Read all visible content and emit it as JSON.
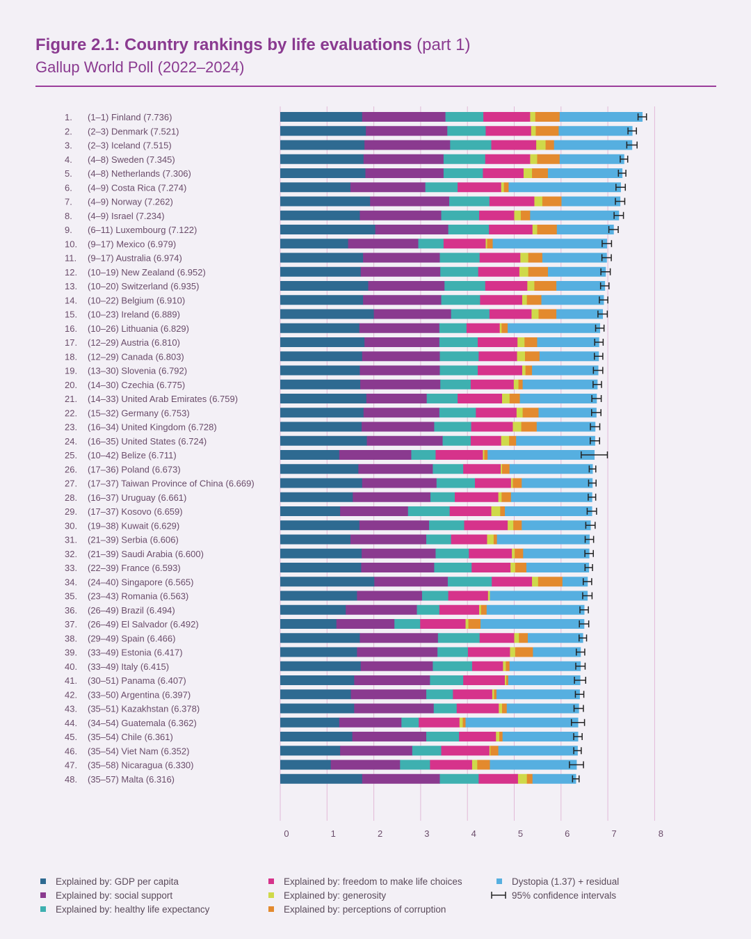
{
  "header": {
    "title": "Figure 2.1: Country rankings by life evaluations",
    "title_part": "(part 1)",
    "subtitle": "Gallup World Poll (2022–2024)"
  },
  "chart_data": {
    "type": "bar",
    "orientation": "horizontal",
    "stacked": true,
    "xlim": [
      0,
      8
    ],
    "x_ticks": [
      "0",
      "1",
      "2",
      "3",
      "4",
      "5",
      "6",
      "7",
      "8"
    ],
    "grid": true,
    "legend_position": "bottom",
    "components": [
      {
        "key": "gdp",
        "name": "Explained by: GDP per capita",
        "color": "#2e6a91"
      },
      {
        "key": "social",
        "name": "Explained by: social support",
        "color": "#8a3a8f"
      },
      {
        "key": "health",
        "name": "Explained by: healthy life expectancy",
        "color": "#3eb0b0"
      },
      {
        "key": "freedom",
        "name": "Explained by: freedom to make life choices",
        "color": "#d6338b"
      },
      {
        "key": "generosity",
        "name": "Explained by: generosity",
        "color": "#cfd94a"
      },
      {
        "key": "corruption",
        "name": "Explained by: perceptions of corruption",
        "color": "#e38a2e"
      },
      {
        "key": "dystopia",
        "name": "Dystopia (1.37) + residual",
        "color": "#56afe0"
      }
    ],
    "ci_legend": "95% confidence intervals",
    "rows": [
      {
        "label": "1.",
        "name": "(1–1) Finland (7.736)",
        "score": 7.736,
        "ci": 0.09,
        "parts": [
          1.75,
          1.78,
          0.81,
          1.0,
          0.11,
          0.52
        ]
      },
      {
        "label": "2.",
        "name": "(2–3) Denmark (7.521)",
        "score": 7.521,
        "ci": 0.09,
        "parts": [
          1.83,
          1.74,
          0.82,
          0.97,
          0.1,
          0.49
        ]
      },
      {
        "label": "3.",
        "name": "(2–3) Iceland (7.515)",
        "score": 7.515,
        "ci": 0.11,
        "parts": [
          1.8,
          1.83,
          0.88,
          0.96,
          0.2,
          0.18
        ]
      },
      {
        "label": "4.",
        "name": "(4–8) Sweden (7.345)",
        "score": 7.345,
        "ci": 0.08,
        "parts": [
          1.78,
          1.71,
          0.89,
          0.96,
          0.15,
          0.48
        ]
      },
      {
        "label": "5.",
        "name": "(4–8) Netherlands (7.306)",
        "score": 7.306,
        "ci": 0.08,
        "parts": [
          1.82,
          1.67,
          0.84,
          0.87,
          0.18,
          0.34
        ]
      },
      {
        "label": "6.",
        "name": "(4–9) Costa Rica (7.274)",
        "score": 7.274,
        "ci": 0.1,
        "parts": [
          1.5,
          1.6,
          0.69,
          0.93,
          0.06,
          0.1
        ]
      },
      {
        "label": "7.",
        "name": "(4–9) Norway (7.262)",
        "score": 7.262,
        "ci": 0.1,
        "parts": [
          1.92,
          1.69,
          0.86,
          0.96,
          0.17,
          0.41
        ]
      },
      {
        "label": "8.",
        "name": "(4–9) Israel (7.234)",
        "score": 7.234,
        "ci": 0.1,
        "parts": [
          1.7,
          1.74,
          0.81,
          0.75,
          0.14,
          0.2
        ]
      },
      {
        "label": "9.",
        "name": "(6–11) Luxembourg (7.122)",
        "score": 7.122,
        "ci": 0.1,
        "parts": [
          2.03,
          1.56,
          0.87,
          0.93,
          0.1,
          0.42
        ]
      },
      {
        "label": "10.",
        "name": "(9–17) Mexico (6.979)",
        "score": 6.979,
        "ci": 0.1,
        "parts": [
          1.45,
          1.5,
          0.54,
          0.9,
          0.03,
          0.12
        ]
      },
      {
        "label": "11.",
        "name": "(9–17) Australia (6.974)",
        "score": 6.974,
        "ci": 0.1,
        "parts": [
          1.77,
          1.64,
          0.85,
          0.87,
          0.17,
          0.3
        ]
      },
      {
        "label": "12.",
        "name": "(10–19) New Zealand (6.952)",
        "score": 6.952,
        "ci": 0.1,
        "parts": [
          1.72,
          1.7,
          0.81,
          0.88,
          0.19,
          0.42
        ]
      },
      {
        "label": "13.",
        "name": "(10–20) Switzerland (6.935)",
        "score": 6.935,
        "ci": 0.09,
        "parts": [
          1.88,
          1.63,
          0.87,
          0.9,
          0.15,
          0.47
        ]
      },
      {
        "label": "14.",
        "name": "(10–22) Belgium (6.910)",
        "score": 6.91,
        "ci": 0.09,
        "parts": [
          1.77,
          1.67,
          0.83,
          0.9,
          0.1,
          0.31
        ]
      },
      {
        "label": "15.",
        "name": "(10–23) Ireland (6.889)",
        "score": 6.889,
        "ci": 0.1,
        "parts": [
          2.0,
          1.65,
          0.82,
          0.9,
          0.15,
          0.38
        ]
      },
      {
        "label": "16.",
        "name": "(10–26) Lithuania (6.829)",
        "score": 6.829,
        "ci": 0.09,
        "parts": [
          1.69,
          1.71,
          0.58,
          0.71,
          0.04,
          0.13
        ]
      },
      {
        "label": "17.",
        "name": "(12–29) Austria (6.810)",
        "score": 6.81,
        "ci": 0.09,
        "parts": [
          1.8,
          1.6,
          0.82,
          0.85,
          0.15,
          0.27
        ]
      },
      {
        "label": "18.",
        "name": "(12–29) Canada (6.803)",
        "score": 6.803,
        "ci": 0.09,
        "parts": [
          1.75,
          1.66,
          0.83,
          0.82,
          0.17,
          0.31
        ]
      },
      {
        "label": "19.",
        "name": "(13–30) Slovenia (6.792)",
        "score": 6.792,
        "ci": 0.1,
        "parts": [
          1.7,
          1.71,
          0.81,
          0.95,
          0.07,
          0.14
        ]
      },
      {
        "label": "20.",
        "name": "(14–30) Czechia (6.775)",
        "score": 6.775,
        "ci": 0.09,
        "parts": [
          1.71,
          1.71,
          0.65,
          0.92,
          0.1,
          0.09
        ]
      },
      {
        "label": "21.",
        "name": "(14–33) United Arab Emirates (6.759)",
        "score": 6.759,
        "ci": 0.1,
        "parts": [
          1.84,
          1.29,
          0.66,
          0.95,
          0.16,
          0.22
        ]
      },
      {
        "label": "22.",
        "name": "(15–32) Germany (6.753)",
        "score": 6.753,
        "ci": 0.1,
        "parts": [
          1.78,
          1.62,
          0.78,
          0.87,
          0.13,
          0.34
        ]
      },
      {
        "label": "23.",
        "name": "(16–34) United Kingdom (6.728)",
        "score": 6.728,
        "ci": 0.1,
        "parts": [
          1.74,
          1.55,
          0.79,
          0.89,
          0.18,
          0.33
        ]
      },
      {
        "label": "24.",
        "name": "(16–35) United States (6.724)",
        "score": 6.724,
        "ci": 0.1,
        "parts": [
          1.85,
          1.62,
          0.6,
          0.65,
          0.17,
          0.15
        ]
      },
      {
        "label": "25.",
        "name": "(10–42) Belize (6.711)",
        "score": 6.711,
        "ci": 0.28,
        "parts": [
          1.26,
          1.54,
          0.52,
          1.01,
          0.03,
          0.07
        ]
      },
      {
        "label": "26.",
        "name": "(17–36) Poland (6.673)",
        "score": 6.673,
        "ci": 0.07,
        "parts": [
          1.67,
          1.59,
          0.65,
          0.8,
          0.03,
          0.16
        ]
      },
      {
        "label": "27.",
        "name": "(17–37) Taiwan Province of China (6.669)",
        "score": 6.669,
        "ci": 0.08,
        "parts": [
          1.75,
          1.59,
          0.82,
          0.77,
          0.04,
          0.19
        ]
      },
      {
        "label": "28.",
        "name": "(16–37) Uruguay (6.661)",
        "score": 6.661,
        "ci": 0.08,
        "parts": [
          1.55,
          1.66,
          0.52,
          0.93,
          0.07,
          0.2
        ]
      },
      {
        "label": "29.",
        "name": "(17–37) Kosovo (6.659)",
        "score": 6.659,
        "ci": 0.1,
        "parts": [
          1.28,
          1.45,
          0.89,
          0.89,
          0.19,
          0.1
        ]
      },
      {
        "label": "30.",
        "name": "(19–38) Kuwait (6.629)",
        "score": 6.629,
        "ci": 0.1,
        "parts": [
          1.69,
          1.49,
          0.75,
          0.93,
          0.12,
          0.18
        ]
      },
      {
        "label": "31.",
        "name": "(21–39) Serbia (6.606)",
        "score": 6.606,
        "ci": 0.09,
        "parts": [
          1.5,
          1.62,
          0.53,
          0.77,
          0.14,
          0.07
        ]
      },
      {
        "label": "32.",
        "name": "(21–39) Saudi Arabia (6.600)",
        "score": 6.6,
        "ci": 0.09,
        "parts": [
          1.74,
          1.58,
          0.71,
          0.92,
          0.06,
          0.18
        ]
      },
      {
        "label": "33.",
        "name": "(22–39) France (6.593)",
        "score": 6.593,
        "ci": 0.08,
        "parts": [
          1.73,
          1.56,
          0.8,
          0.83,
          0.1,
          0.24
        ]
      },
      {
        "label": "34.",
        "name": "(24–40) Singapore (6.565)",
        "score": 6.565,
        "ci": 0.09,
        "parts": [
          2.01,
          1.57,
          0.94,
          0.86,
          0.13,
          0.52
        ]
      },
      {
        "label": "35.",
        "name": "(23–43) Romania (6.563)",
        "score": 6.563,
        "ci": 0.1,
        "parts": [
          1.64,
          1.39,
          0.56,
          0.85,
          0.04,
          0.0
        ]
      },
      {
        "label": "36.",
        "name": "(26–49) Brazil (6.494)",
        "score": 6.494,
        "ci": 0.09,
        "parts": [
          1.4,
          1.52,
          0.48,
          0.85,
          0.04,
          0.12
        ]
      },
      {
        "label": "37.",
        "name": "(26–49) El Salvador (6.492)",
        "score": 6.492,
        "ci": 0.1,
        "parts": [
          1.2,
          1.24,
          0.55,
          0.97,
          0.06,
          0.26
        ]
      },
      {
        "label": "38.",
        "name": "(29–49) Spain (6.466)",
        "score": 6.466,
        "ci": 0.08,
        "parts": [
          1.7,
          1.67,
          0.89,
          0.74,
          0.1,
          0.19
        ]
      },
      {
        "label": "39.",
        "name": "(33–49) Estonia (6.417)",
        "score": 6.417,
        "ci": 0.09,
        "parts": [
          1.64,
          1.72,
          0.65,
          0.9,
          0.11,
          0.38
        ]
      },
      {
        "label": "40.",
        "name": "(33–49) Italy (6.415)",
        "score": 6.415,
        "ci": 0.1,
        "parts": [
          1.72,
          1.54,
          0.84,
          0.66,
          0.06,
          0.08
        ]
      },
      {
        "label": "41.",
        "name": "(30–51) Panama (6.407)",
        "score": 6.407,
        "ci": 0.12,
        "parts": [
          1.58,
          1.62,
          0.71,
          0.89,
          0.03,
          0.04
        ]
      },
      {
        "label": "42.",
        "name": "(33–50) Argentina (6.397)",
        "score": 6.397,
        "ci": 0.09,
        "parts": [
          1.51,
          1.61,
          0.57,
          0.84,
          0.04,
          0.05
        ]
      },
      {
        "label": "43.",
        "name": "(35–51) Kazakhstan (6.378)",
        "score": 6.378,
        "ci": 0.1,
        "parts": [
          1.58,
          1.7,
          0.49,
          0.9,
          0.07,
          0.1
        ]
      },
      {
        "label": "44.",
        "name": "(34–54) Guatemala (6.362)",
        "score": 6.362,
        "ci": 0.14,
        "parts": [
          1.26,
          1.33,
          0.37,
          0.87,
          0.07,
          0.06
        ]
      },
      {
        "label": "45.",
        "name": "(35–54) Chile (6.361)",
        "score": 6.361,
        "ci": 0.09,
        "parts": [
          1.54,
          1.58,
          0.7,
          0.79,
          0.07,
          0.07
        ]
      },
      {
        "label": "46.",
        "name": "(35–54) Viet Nam (6.352)",
        "score": 6.352,
        "ci": 0.08,
        "parts": [
          1.28,
          1.54,
          0.62,
          1.03,
          0.02,
          0.17
        ]
      },
      {
        "label": "47.",
        "name": "(35–58) Nicaragua (6.330)",
        "score": 6.33,
        "ci": 0.15,
        "parts": [
          1.08,
          1.48,
          0.64,
          0.9,
          0.11,
          0.27
        ]
      },
      {
        "label": "48.",
        "name": "(35–57) Malta (6.316)",
        "score": 6.316,
        "ci": 0.07,
        "parts": [
          1.75,
          1.66,
          0.83,
          0.84,
          0.19,
          0.12
        ]
      }
    ]
  }
}
